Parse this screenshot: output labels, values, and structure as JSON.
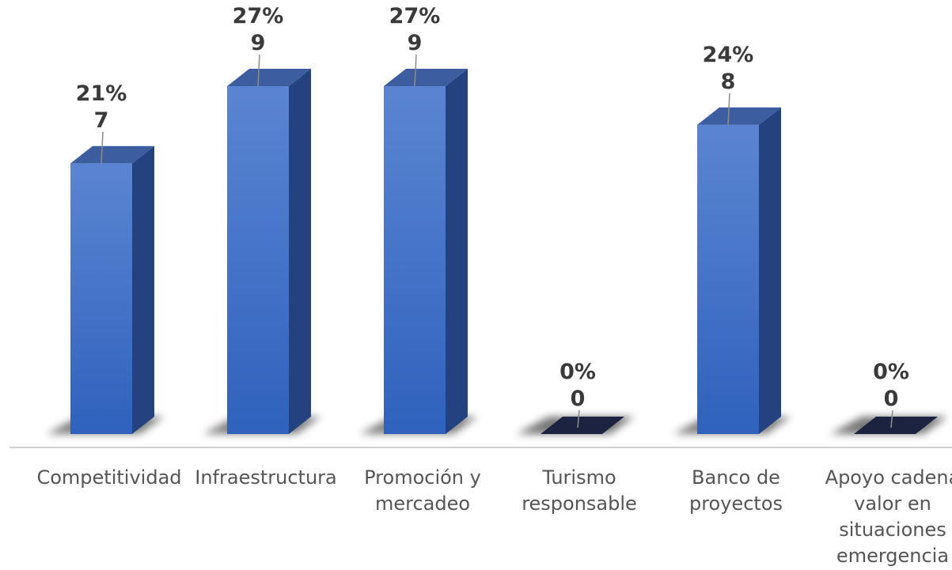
{
  "chart_data": {
    "type": "bar",
    "categories": [
      [
        "Competitividad"
      ],
      [
        "Infraestructura"
      ],
      [
        "Promoción y",
        "mercadeo"
      ],
      [
        "Turismo",
        "responsable"
      ],
      [
        "Banco de",
        "proyectos"
      ],
      [
        "Apoyo cadena",
        "valor en",
        "situaciones",
        "emergencia"
      ]
    ],
    "values": [
      7,
      9,
      9,
      0,
      8,
      0
    ],
    "percent_labels": [
      "21%",
      "27%",
      "27%",
      "0%",
      "24%",
      "0%"
    ],
    "value_labels": [
      "7",
      "9",
      "9",
      "0",
      "8",
      "0"
    ],
    "ylim": [
      0,
      9
    ],
    "grid": false,
    "legend": "none",
    "colors": {
      "bar_front_top": "#5b85d2",
      "bar_front_bottom": "#2f62bd",
      "bar_side": "#24427f",
      "bar_top": "#3c5da0",
      "zero_bar": "#1b2340",
      "shadow": "#555555",
      "axis": "#cfcfcf",
      "leader": "#8c8c8c"
    }
  }
}
